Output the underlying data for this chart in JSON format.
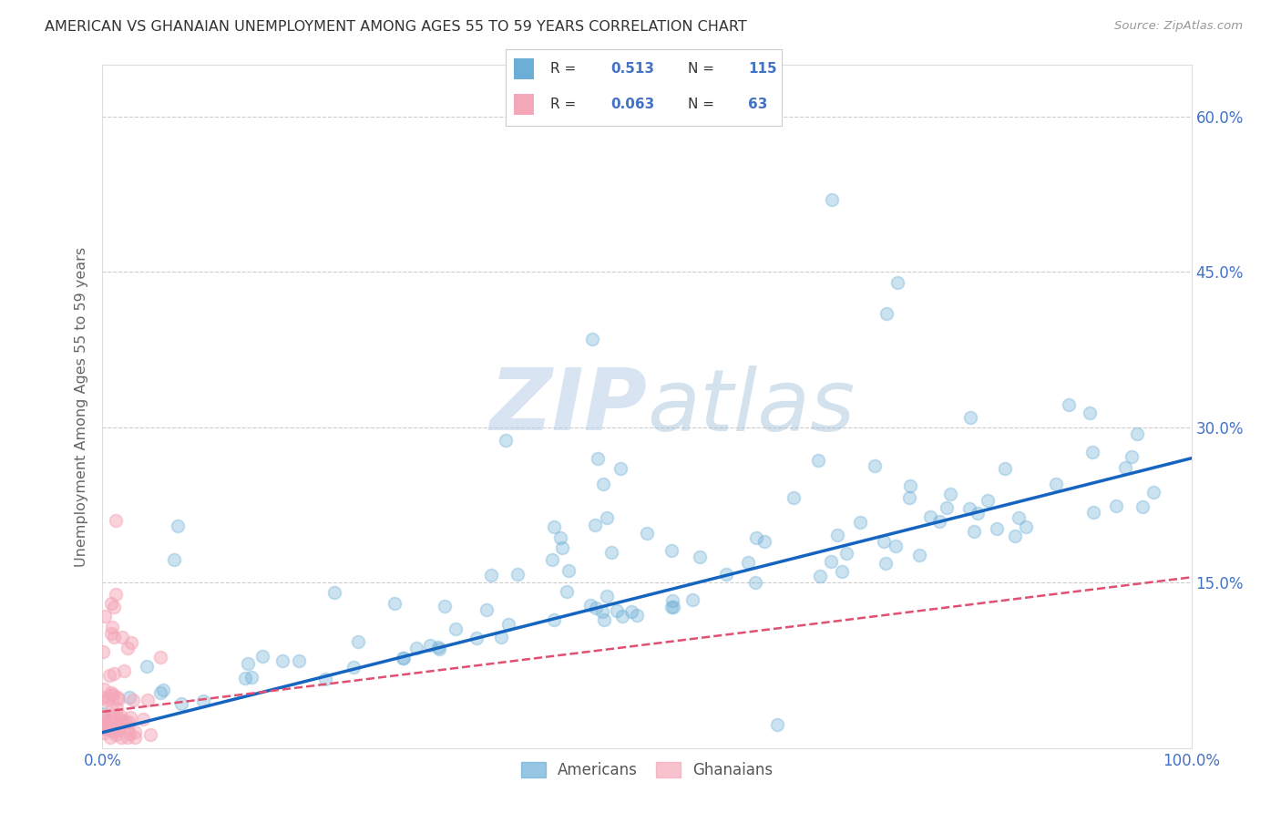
{
  "title": "AMERICAN VS GHANAIAN UNEMPLOYMENT AMONG AGES 55 TO 59 YEARS CORRELATION CHART",
  "source": "Source: ZipAtlas.com",
  "ylabel": "Unemployment Among Ages 55 to 59 years",
  "xlim": [
    0,
    1.0
  ],
  "ylim": [
    -0.01,
    0.65
  ],
  "yticks": [
    0.15,
    0.3,
    0.45,
    0.6
  ],
  "yticklabels": [
    "15.0%",
    "30.0%",
    "45.0%",
    "60.0%"
  ],
  "xtick_positions": [
    0.0,
    1.0
  ],
  "xticklabels": [
    "0.0%",
    "100.0%"
  ],
  "american_color": "#6baed6",
  "ghanaian_color": "#f4a7b9",
  "american_R": 0.513,
  "american_N": 115,
  "ghanaian_R": 0.063,
  "ghanaian_N": 63,
  "watermark_zip": "ZIP",
  "watermark_atlas": "atlas",
  "background_color": "#ffffff",
  "grid_color": "#cccccc",
  "title_color": "#333333",
  "axis_label_color": "#666666",
  "tick_color": "#4472c4",
  "american_line_color": "#1565c0",
  "ghanaian_line_color": "#e05070",
  "legend_R_color": "#4472c4",
  "am_line_y0": 0.005,
  "am_line_y1": 0.27,
  "gh_line_y0": 0.025,
  "gh_line_y1": 0.155
}
